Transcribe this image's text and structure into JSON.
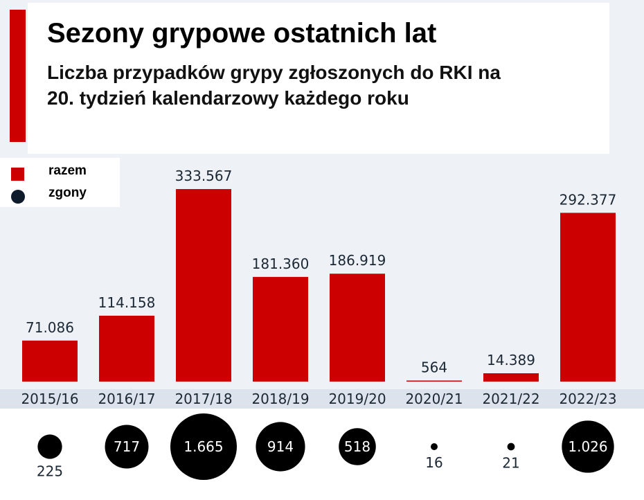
{
  "title": "Sezony grypowe ostatnich lat",
  "subtitle": "Liczba przypadków grypy zgłoszonych do RKI na 20. tydzień kalendarzowy każdego roku",
  "colors": {
    "accent": "#cc0000",
    "deaths": "#000000",
    "background": "#eef2f7"
  },
  "legend": [
    {
      "label": "razem",
      "shape": "square"
    },
    {
      "label": "zgony",
      "shape": "circle"
    }
  ],
  "chart_data": {
    "type": "bar",
    "title": "Sezony grypowe ostatnich lat",
    "subtitle": "Liczba przypadków grypy zgłoszonych do RKI na 20. tydzień kalendarzowy każdego roku",
    "categories": [
      "2015/16",
      "2016/17",
      "2017/18",
      "2018/19",
      "2019/20",
      "2020/21",
      "2021/22",
      "2022/23"
    ],
    "series": [
      {
        "name": "razem",
        "values": [
          71086,
          114158,
          333567,
          181360,
          186919,
          564,
          14389,
          292377
        ],
        "labels": [
          "71.086",
          "114.158",
          "333.567",
          "181.360",
          "186.919",
          "564",
          "14.389",
          "292.377"
        ]
      },
      {
        "name": "zgony",
        "values": [
          225,
          717,
          1665,
          914,
          518,
          16,
          21,
          1026
        ],
        "labels": [
          "225",
          "717",
          "1.665",
          "914",
          "518",
          "16",
          "21",
          "1.026"
        ]
      }
    ],
    "ylim": [
      0,
      340000
    ],
    "grid": false,
    "legend_position": "top-left"
  }
}
